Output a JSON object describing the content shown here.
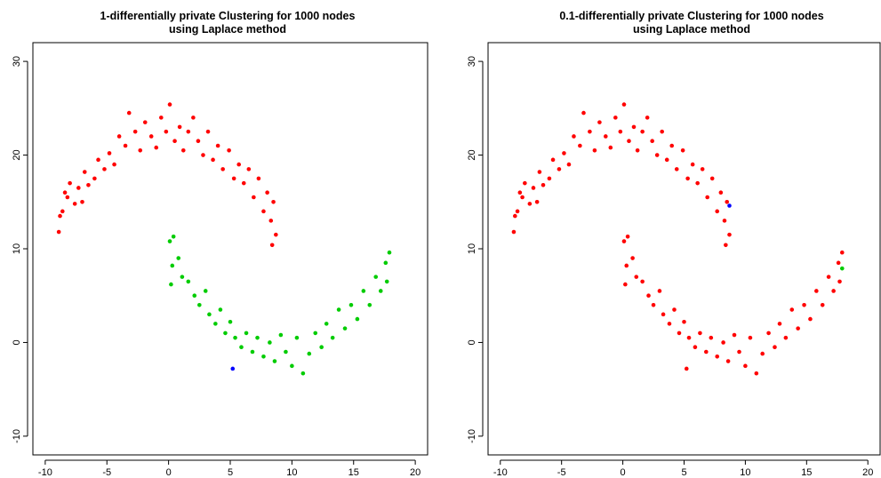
{
  "chart_data": [
    {
      "type": "scatter",
      "title": "1-differentially  private Clustering for 1000 nodes",
      "subtitle": "using Laplace method",
      "xlabel": "",
      "ylabel": "",
      "xlim": [
        -11,
        21
      ],
      "ylim": [
        -12,
        32
      ],
      "x_ticks": [
        -10,
        -5,
        0,
        5,
        10,
        15,
        20
      ],
      "y_ticks": [
        -10,
        0,
        10,
        20,
        30
      ],
      "grid": false,
      "legend": "none",
      "series": [
        {
          "color": "#ff0000",
          "points": [
            [
              -8.9,
              11.8
            ],
            [
              -8.8,
              13.5
            ],
            [
              -8.6,
              14.0
            ],
            [
              -8.4,
              16.0
            ],
            [
              -8.2,
              15.5
            ],
            [
              -8.0,
              17.0
            ],
            [
              -7.6,
              14.8
            ],
            [
              -7.3,
              16.5
            ],
            [
              -7.0,
              15.0
            ],
            [
              -6.8,
              18.2
            ],
            [
              -6.5,
              16.8
            ],
            [
              -6.0,
              17.5
            ],
            [
              -5.7,
              19.5
            ],
            [
              -5.2,
              18.5
            ],
            [
              -4.8,
              20.2
            ],
            [
              -4.4,
              19.0
            ],
            [
              -4.0,
              22.0
            ],
            [
              -3.5,
              21.0
            ],
            [
              -3.2,
              24.5
            ],
            [
              -2.7,
              22.5
            ],
            [
              -2.3,
              20.5
            ],
            [
              -1.9,
              23.5
            ],
            [
              -1.4,
              22.0
            ],
            [
              -1.0,
              20.8
            ],
            [
              -0.6,
              24.0
            ],
            [
              -0.2,
              22.5
            ],
            [
              0.1,
              25.4
            ],
            [
              0.5,
              21.5
            ],
            [
              0.9,
              23.0
            ],
            [
              1.2,
              20.5
            ],
            [
              1.6,
              22.5
            ],
            [
              2.0,
              24.0
            ],
            [
              2.4,
              21.5
            ],
            [
              2.8,
              20.0
            ],
            [
              3.2,
              22.5
            ],
            [
              3.6,
              19.5
            ],
            [
              4.0,
              21.0
            ],
            [
              4.4,
              18.5
            ],
            [
              4.9,
              20.5
            ],
            [
              5.3,
              17.5
            ],
            [
              5.7,
              19.0
            ],
            [
              6.1,
              17.0
            ],
            [
              6.5,
              18.5
            ],
            [
              6.9,
              15.5
            ],
            [
              7.3,
              17.5
            ],
            [
              7.7,
              14.0
            ],
            [
              8.0,
              16.0
            ],
            [
              8.3,
              13.0
            ],
            [
              8.5,
              15.0
            ],
            [
              8.7,
              11.5
            ],
            [
              8.4,
              10.4
            ]
          ]
        },
        {
          "color": "#00cc00",
          "points": [
            [
              0.1,
              10.8
            ],
            [
              0.4,
              11.3
            ],
            [
              0.3,
              8.2
            ],
            [
              0.8,
              9.0
            ],
            [
              1.1,
              7.0
            ],
            [
              0.2,
              6.2
            ],
            [
              1.6,
              6.5
            ],
            [
              2.1,
              5.0
            ],
            [
              2.5,
              4.0
            ],
            [
              3.0,
              5.5
            ],
            [
              3.3,
              3.0
            ],
            [
              3.8,
              2.0
            ],
            [
              4.2,
              3.5
            ],
            [
              4.6,
              1.0
            ],
            [
              5.0,
              2.2
            ],
            [
              5.4,
              0.5
            ],
            [
              5.9,
              -0.5
            ],
            [
              6.3,
              1.0
            ],
            [
              6.8,
              -1.0
            ],
            [
              7.2,
              0.5
            ],
            [
              7.7,
              -1.5
            ],
            [
              8.2,
              0.0
            ],
            [
              8.6,
              -2.0
            ],
            [
              9.1,
              0.8
            ],
            [
              9.5,
              -1.0
            ],
            [
              10.0,
              -2.5
            ],
            [
              10.4,
              0.5
            ],
            [
              10.9,
              -3.3
            ],
            [
              11.4,
              -1.2
            ],
            [
              11.9,
              1.0
            ],
            [
              12.4,
              -0.5
            ],
            [
              12.8,
              2.0
            ],
            [
              13.3,
              0.5
            ],
            [
              13.8,
              3.5
            ],
            [
              14.3,
              1.5
            ],
            [
              14.8,
              4.0
            ],
            [
              15.3,
              2.5
            ],
            [
              15.8,
              5.5
            ],
            [
              16.3,
              4.0
            ],
            [
              16.8,
              7.0
            ],
            [
              17.2,
              5.5
            ],
            [
              17.6,
              8.5
            ],
            [
              17.9,
              9.6
            ],
            [
              17.7,
              6.5
            ]
          ]
        },
        {
          "color": "#0000ff",
          "points": [
            [
              5.2,
              -2.8
            ]
          ]
        }
      ]
    },
    {
      "type": "scatter",
      "title": "0.1-differentially  private Clustering for 1000 nodes",
      "subtitle": "using Laplace method",
      "xlabel": "",
      "ylabel": "",
      "xlim": [
        -11,
        21
      ],
      "ylim": [
        -12,
        32
      ],
      "x_ticks": [
        -10,
        -5,
        0,
        5,
        10,
        15,
        20
      ],
      "y_ticks": [
        -10,
        0,
        10,
        20,
        30
      ],
      "grid": false,
      "legend": "none",
      "series": [
        {
          "color": "#ff0000",
          "points": [
            [
              -8.9,
              11.8
            ],
            [
              -8.8,
              13.5
            ],
            [
              -8.6,
              14.0
            ],
            [
              -8.4,
              16.0
            ],
            [
              -8.2,
              15.5
            ],
            [
              -8.0,
              17.0
            ],
            [
              -7.6,
              14.8
            ],
            [
              -7.3,
              16.5
            ],
            [
              -7.0,
              15.0
            ],
            [
              -6.8,
              18.2
            ],
            [
              -6.5,
              16.8
            ],
            [
              -6.0,
              17.5
            ],
            [
              -5.7,
              19.5
            ],
            [
              -5.2,
              18.5
            ],
            [
              -4.8,
              20.2
            ],
            [
              -4.4,
              19.0
            ],
            [
              -4.0,
              22.0
            ],
            [
              -3.5,
              21.0
            ],
            [
              -3.2,
              24.5
            ],
            [
              -2.7,
              22.5
            ],
            [
              -2.3,
              20.5
            ],
            [
              -1.9,
              23.5
            ],
            [
              -1.4,
              22.0
            ],
            [
              -1.0,
              20.8
            ],
            [
              -0.6,
              24.0
            ],
            [
              -0.2,
              22.5
            ],
            [
              0.1,
              25.4
            ],
            [
              0.5,
              21.5
            ],
            [
              0.9,
              23.0
            ],
            [
              1.2,
              20.5
            ],
            [
              1.6,
              22.5
            ],
            [
              2.0,
              24.0
            ],
            [
              2.4,
              21.5
            ],
            [
              2.8,
              20.0
            ],
            [
              3.2,
              22.5
            ],
            [
              3.6,
              19.5
            ],
            [
              4.0,
              21.0
            ],
            [
              4.4,
              18.5
            ],
            [
              4.9,
              20.5
            ],
            [
              5.3,
              17.5
            ],
            [
              5.7,
              19.0
            ],
            [
              6.1,
              17.0
            ],
            [
              6.5,
              18.5
            ],
            [
              6.9,
              15.5
            ],
            [
              7.3,
              17.5
            ],
            [
              7.7,
              14.0
            ],
            [
              8.0,
              16.0
            ],
            [
              8.3,
              13.0
            ],
            [
              8.5,
              15.0
            ],
            [
              8.7,
              11.5
            ],
            [
              8.4,
              10.4
            ],
            [
              0.1,
              10.8
            ],
            [
              0.4,
              11.3
            ],
            [
              0.3,
              8.2
            ],
            [
              0.8,
              9.0
            ],
            [
              1.1,
              7.0
            ],
            [
              0.2,
              6.2
            ],
            [
              1.6,
              6.5
            ],
            [
              2.1,
              5.0
            ],
            [
              2.5,
              4.0
            ],
            [
              3.0,
              5.5
            ],
            [
              3.3,
              3.0
            ],
            [
              3.8,
              2.0
            ],
            [
              4.2,
              3.5
            ],
            [
              4.6,
              1.0
            ],
            [
              5.0,
              2.2
            ],
            [
              5.4,
              0.5
            ],
            [
              5.9,
              -0.5
            ],
            [
              6.3,
              1.0
            ],
            [
              6.8,
              -1.0
            ],
            [
              7.2,
              0.5
            ],
            [
              7.7,
              -1.5
            ],
            [
              8.2,
              0.0
            ],
            [
              8.6,
              -2.0
            ],
            [
              9.1,
              0.8
            ],
            [
              9.5,
              -1.0
            ],
            [
              10.0,
              -2.5
            ],
            [
              10.4,
              0.5
            ],
            [
              10.9,
              -3.3
            ],
            [
              11.4,
              -1.2
            ],
            [
              11.9,
              1.0
            ],
            [
              12.4,
              -0.5
            ],
            [
              12.8,
              2.0
            ],
            [
              13.3,
              0.5
            ],
            [
              13.8,
              3.5
            ],
            [
              14.3,
              1.5
            ],
            [
              14.8,
              4.0
            ],
            [
              15.3,
              2.5
            ],
            [
              15.8,
              5.5
            ],
            [
              16.3,
              4.0
            ],
            [
              16.8,
              7.0
            ],
            [
              17.2,
              5.5
            ],
            [
              17.6,
              8.5
            ],
            [
              17.9,
              9.6
            ],
            [
              17.7,
              6.5
            ],
            [
              5.2,
              -2.8
            ]
          ]
        },
        {
          "color": "#0000ff",
          "points": [
            [
              8.7,
              14.6
            ]
          ]
        },
        {
          "color": "#00cc00",
          "points": [
            [
              17.9,
              7.9
            ]
          ]
        }
      ]
    }
  ]
}
